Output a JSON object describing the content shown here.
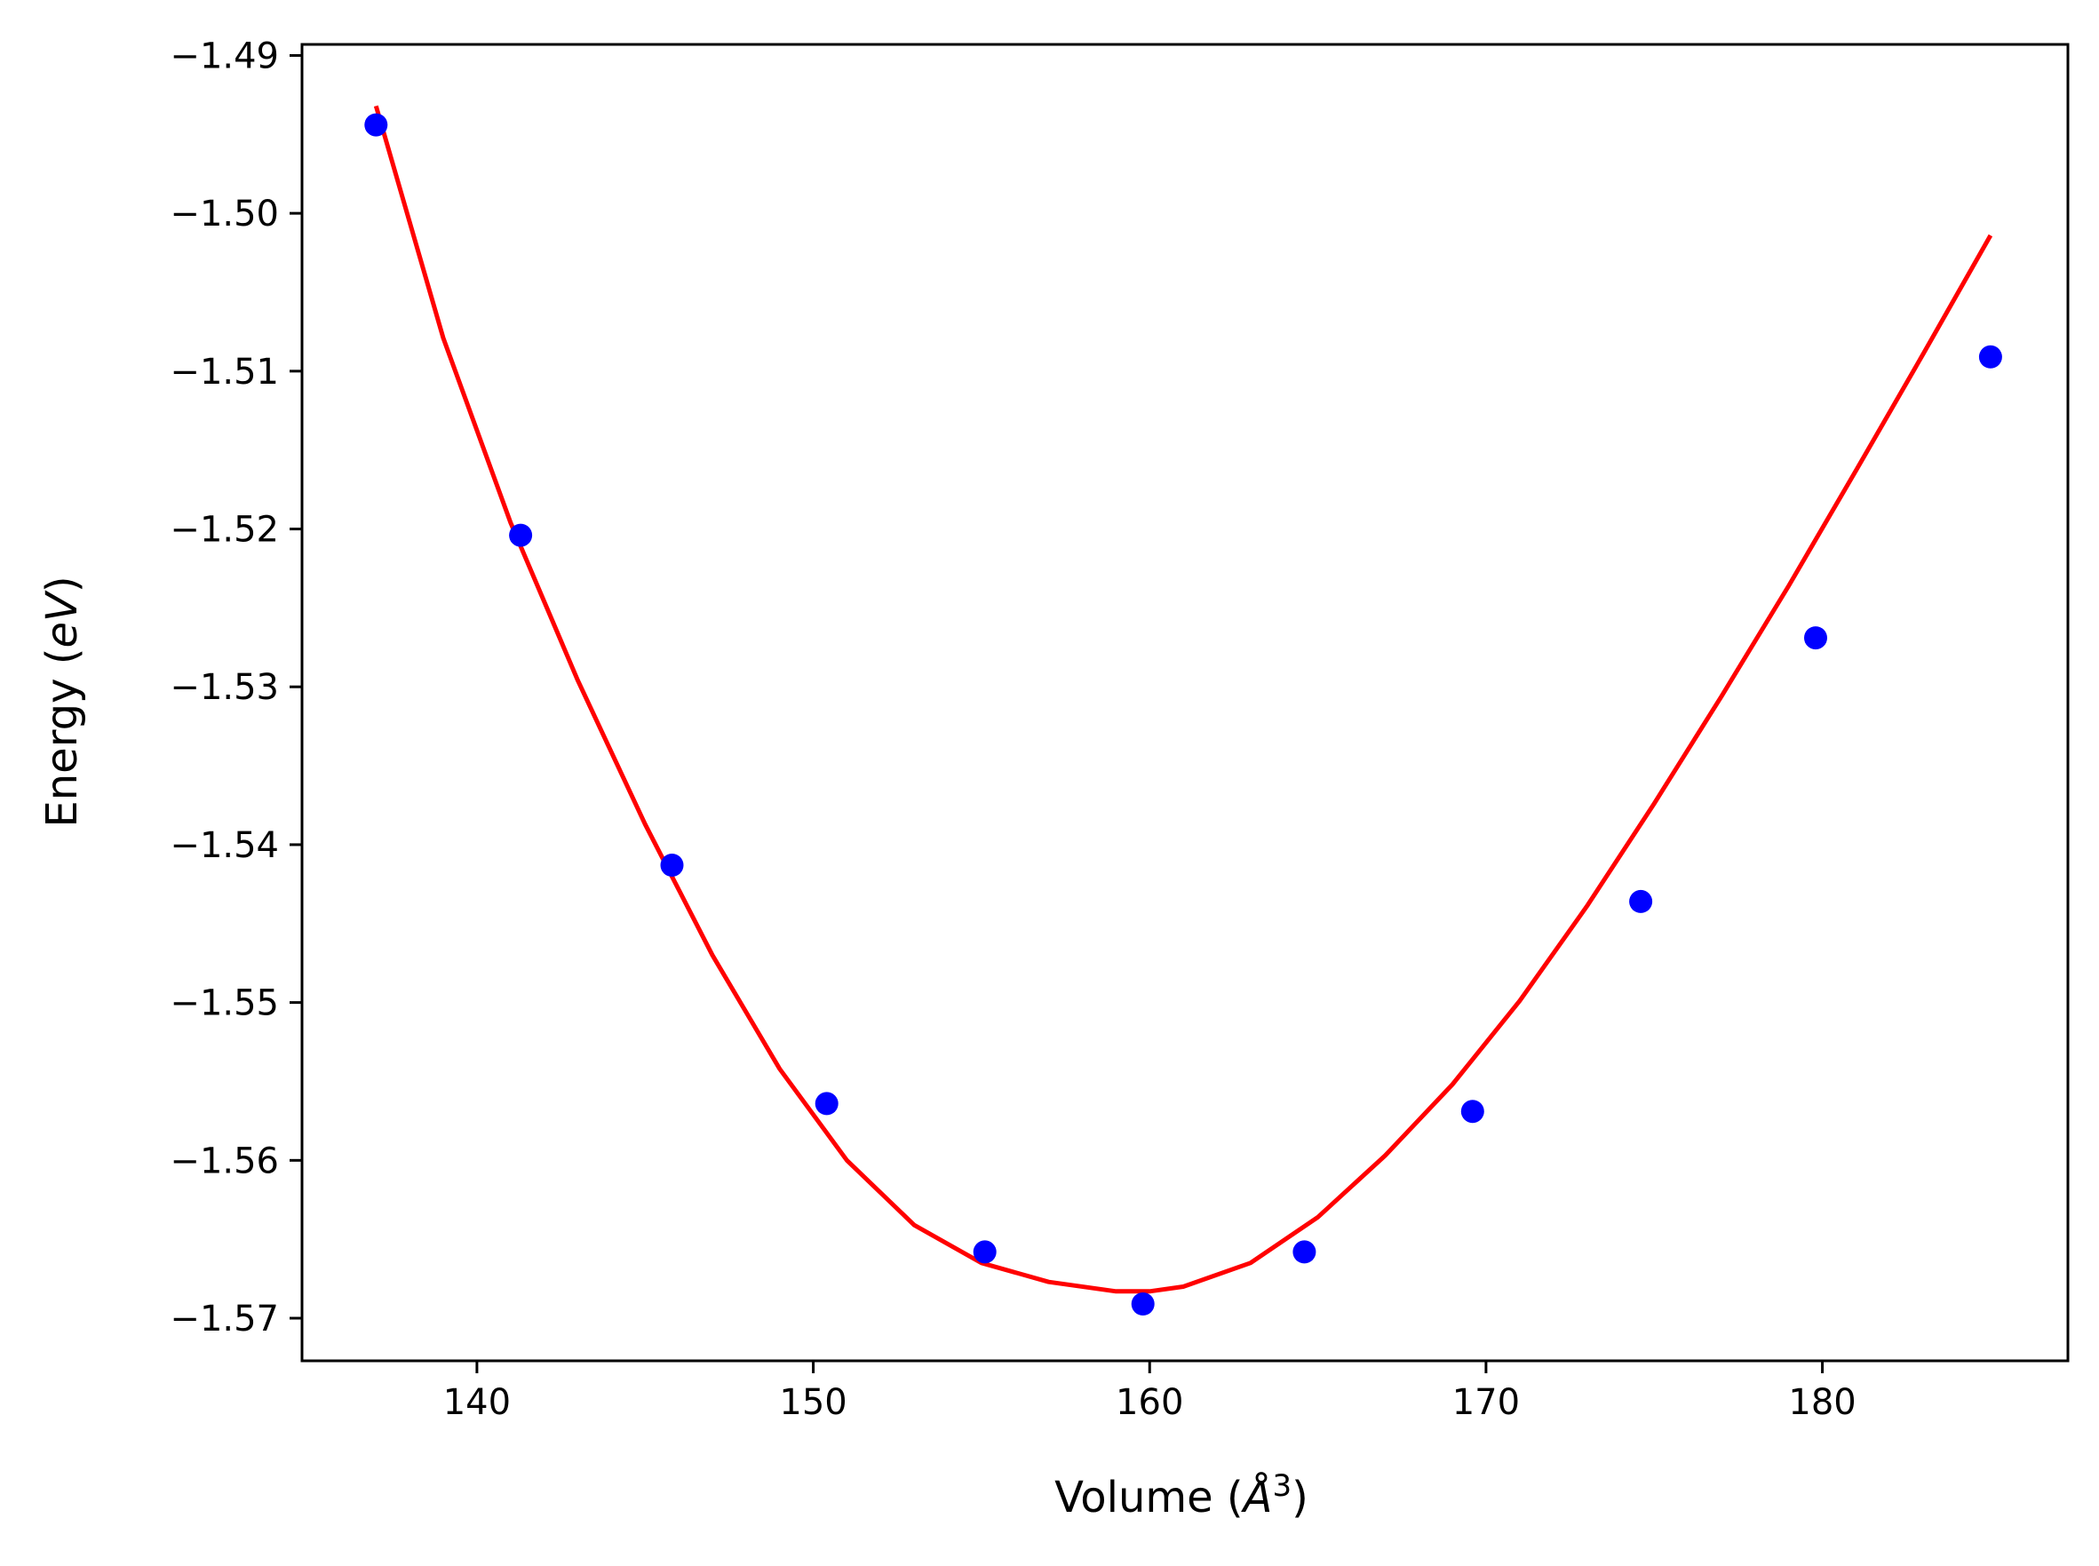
{
  "chart_data": {
    "type": "scatter",
    "title": "",
    "xlabel": {
      "prefix": "Volume (",
      "italic": "Å",
      "superscript": "3",
      "suffix": ")"
    },
    "ylabel": {
      "prefix": "Energy (",
      "italic": "eV",
      "suffix": ")"
    },
    "xlim": [
      134.8,
      187.3
    ],
    "ylim": [
      -1.5727,
      -1.4893
    ],
    "grid": false,
    "xticks": [
      140,
      150,
      160,
      170,
      180
    ],
    "xtick_labels": [
      "140",
      "150",
      "160",
      "170",
      "180"
    ],
    "yticks": [
      -1.49,
      -1.5,
      -1.51,
      -1.52,
      -1.53,
      -1.54,
      -1.55,
      -1.56,
      -1.57
    ],
    "ytick_labels": [
      "−1.49",
      "−1.50",
      "−1.51",
      "−1.52",
      "−1.53",
      "−1.54",
      "−1.55",
      "−1.56",
      "−1.57"
    ],
    "series": [
      {
        "kind": "points",
        "color": "#0000ff",
        "x": [
          137.0,
          141.3,
          145.8,
          150.4,
          155.1,
          159.8,
          164.6,
          169.6,
          174.6,
          179.8,
          185.0
        ],
        "y": [
          -1.4944,
          -1.5204,
          -1.5413,
          -1.5564,
          -1.5658,
          -1.5691,
          -1.5658,
          -1.5569,
          -1.5436,
          -1.5269,
          -1.5091
        ]
      },
      {
        "kind": "fit-curve",
        "color": "#ff0000",
        "x": [
          137.0,
          139.0,
          141.0,
          143.0,
          145.0,
          147.0,
          149.0,
          151.0,
          153.0,
          155.0,
          157.0,
          159.0,
          160.0,
          161.0,
          163.0,
          165.0,
          167.0,
          169.0,
          171.0,
          173.0,
          175.0,
          177.0,
          179.0,
          181.0,
          183.0,
          185.0
        ],
        "y": [
          -1.4932,
          -1.5079,
          -1.5196,
          -1.5296,
          -1.5387,
          -1.547,
          -1.5542,
          -1.56,
          -1.5641,
          -1.5665,
          -1.5677,
          -1.5683,
          -1.5683,
          -1.568,
          -1.5665,
          -1.5636,
          -1.5597,
          -1.5552,
          -1.5499,
          -1.5439,
          -1.5374,
          -1.5306,
          -1.5236,
          -1.5163,
          -1.5089,
          -1.5014
        ]
      }
    ]
  }
}
